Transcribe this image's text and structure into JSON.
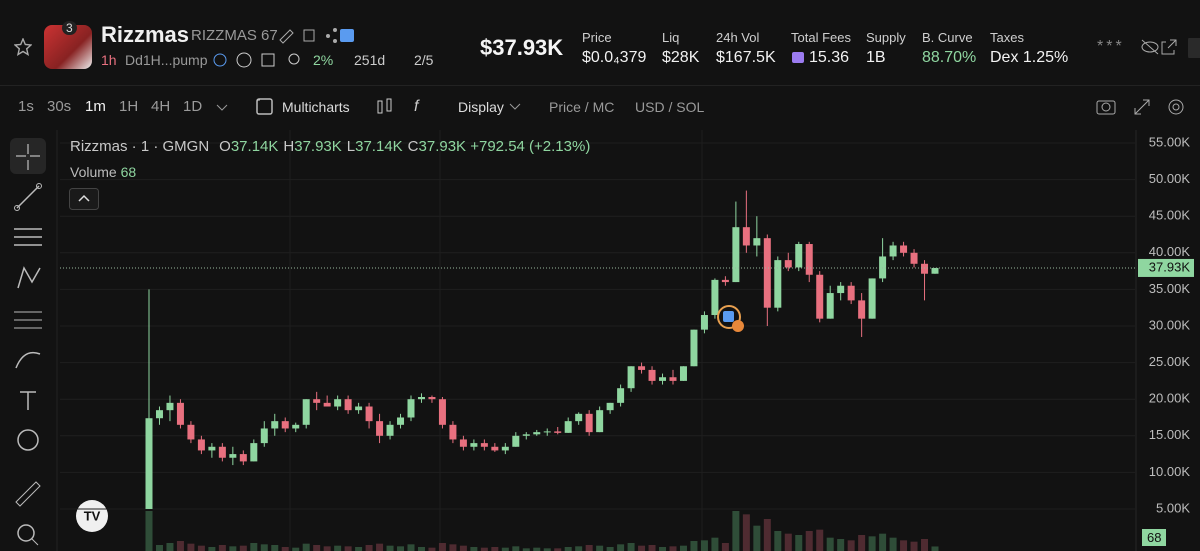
{
  "header": {
    "badge": "3",
    "name": "Rizzmas",
    "ticker": "RIZZMAS 67",
    "age": "1h",
    "address": "Dd1H...pump",
    "holders_pct": "2%",
    "days": "251d",
    "ratio": "2/5",
    "market_cap": "$37.93K",
    "stats": [
      {
        "label": "Price",
        "value": "$0.0₄379"
      },
      {
        "label": "Liq",
        "value": "$28K"
      },
      {
        "label": "24h Vol",
        "value": "$167.5K"
      },
      {
        "label": "Total Fees",
        "value": "15.36"
      },
      {
        "label": "Supply",
        "value": "1B"
      },
      {
        "label": "B. Curve",
        "value": "88.70%"
      },
      {
        "label": "Taxes",
        "value": "Dex 1.25%"
      }
    ]
  },
  "toolbar": {
    "intervals": [
      "1s",
      "30s",
      "1m",
      "1H",
      "4H",
      "1D"
    ],
    "multicharts": "Multicharts",
    "display": "Display",
    "price_mc": "Price / MC",
    "currency": "USD / SOL"
  },
  "chart_data": {
    "type": "candlestick",
    "title": "Rizzmas · 1 · GMGN",
    "ohlc_legend": [
      {
        "label": "O",
        "value": "37.14K"
      },
      {
        "label": "H",
        "value": "37.93K"
      },
      {
        "label": "L",
        "value": "37.14K"
      },
      {
        "label": "C",
        "value": "37.93K"
      }
    ],
    "change": "+792.54 (+2.13%)",
    "volume_label": "Volume",
    "volume_value": "68",
    "open": [
      5000,
      17400,
      18500,
      19500,
      16500,
      14500,
      13000,
      13500,
      12000,
      12500,
      11500,
      14000,
      16000,
      17000,
      16000,
      16500,
      20000,
      19500,
      19000,
      20000,
      18500,
      19000,
      17000,
      15000,
      16500,
      17500,
      20000,
      20300,
      20000,
      16500,
      14500,
      13500,
      14000,
      13500,
      13000,
      13500,
      15000,
      15200,
      15500,
      15600,
      15400,
      17000,
      18000,
      15500,
      18500,
      19500,
      21500,
      24500,
      24000,
      22500,
      23000,
      22500,
      24500,
      29500,
      31500,
      36300,
      36000,
      43500,
      41000,
      42000,
      32500,
      39000,
      38000,
      41200,
      37000,
      31000,
      34500,
      35500,
      33500,
      31000,
      36500,
      39500,
      41000,
      40000,
      38500,
      37140
    ],
    "high": [
      35000,
      19000,
      20500,
      20000,
      17000,
      15000,
      14000,
      14000,
      13500,
      13000,
      14500,
      17000,
      18000,
      17500,
      16800,
      20000,
      21000,
      20500,
      20500,
      20500,
      19500,
      19500,
      18000,
      17000,
      18000,
      20500,
      20800,
      20500,
      20300,
      17000,
      15000,
      14500,
      14500,
      14000,
      14000,
      15500,
      15500,
      15800,
      16000,
      16200,
      17500,
      18200,
      18500,
      19000,
      19500,
      22000,
      24500,
      25000,
      24500,
      23500,
      24000,
      24500,
      29500,
      32000,
      36500,
      36800,
      47000,
      48500,
      45000,
      42500,
      39500,
      40000,
      41500,
      41500,
      37500,
      35500,
      36000,
      36000,
      34500,
      36500,
      42000,
      41500,
      41500,
      40500,
      39000,
      37930
    ],
    "low": [
      5000,
      16500,
      17000,
      16000,
      14000,
      12500,
      12000,
      11500,
      11000,
      11000,
      11500,
      13500,
      15000,
      15500,
      15500,
      16000,
      18500,
      19000,
      18500,
      18000,
      18000,
      16000,
      14000,
      14500,
      16000,
      17000,
      19500,
      19500,
      16000,
      14000,
      13000,
      13000,
      13000,
      12800,
      12500,
      13500,
      14500,
      15000,
      15000,
      15200,
      15400,
      16500,
      15000,
      15500,
      18000,
      19000,
      21000,
      23500,
      22000,
      22000,
      22000,
      22500,
      24500,
      29000,
      31000,
      35500,
      36000,
      40000,
      39500,
      30000,
      32000,
      37500,
      37500,
      36000,
      30500,
      31000,
      33500,
      33000,
      28500,
      31000,
      36000,
      39000,
      39500,
      38000,
      33500,
      37140
    ],
    "close": [
      17400,
      18500,
      19500,
      16500,
      14500,
      13000,
      13500,
      12000,
      12500,
      11500,
      14000,
      16000,
      17000,
      16000,
      16500,
      20000,
      19500,
      19000,
      20000,
      18500,
      19000,
      17000,
      15000,
      16500,
      17500,
      20000,
      20300,
      20000,
      16500,
      14500,
      13500,
      14000,
      13500,
      13000,
      13500,
      15000,
      15200,
      15500,
      15600,
      15400,
      17000,
      18000,
      15500,
      18500,
      19500,
      21500,
      24500,
      24000,
      22500,
      23000,
      22500,
      24500,
      29500,
      31500,
      36300,
      36000,
      43500,
      41000,
      42000,
      32500,
      39000,
      38000,
      41200,
      37000,
      31000,
      34500,
      35500,
      33500,
      31000,
      36500,
      39500,
      41000,
      40000,
      38500,
      37140,
      37930
    ],
    "volume": [
      600,
      90,
      120,
      150,
      110,
      80,
      60,
      90,
      70,
      80,
      120,
      100,
      90,
      60,
      50,
      110,
      90,
      70,
      80,
      70,
      60,
      90,
      110,
      80,
      70,
      100,
      60,
      50,
      120,
      100,
      80,
      60,
      50,
      60,
      50,
      70,
      40,
      50,
      40,
      40,
      60,
      70,
      90,
      80,
      60,
      100,
      120,
      80,
      90,
      60,
      70,
      80,
      150,
      160,
      200,
      120,
      600,
      550,
      380,
      480,
      300,
      260,
      240,
      300,
      320,
      200,
      180,
      160,
      240,
      220,
      260,
      200,
      160,
      140,
      180,
      68
    ],
    "up_color": "#8fd6a0",
    "down_color": "#e8707f",
    "ylim": [
      -740,
      57050
    ],
    "yticks": [
      {
        "value": 5000,
        "label": "5.00K"
      },
      {
        "value": 10000,
        "label": "10.00K"
      },
      {
        "value": 15000,
        "label": "15.00K"
      },
      {
        "value": 20000,
        "label": "20.00K"
      },
      {
        "value": 25000,
        "label": "25.00K"
      },
      {
        "value": 30000,
        "label": "30.00K"
      },
      {
        "value": 35000,
        "label": "35.00K"
      },
      {
        "value": 40000,
        "label": "40.00K"
      },
      {
        "value": 45000,
        "label": "45.00K"
      },
      {
        "value": 50000,
        "label": "50.00K"
      },
      {
        "value": 55000,
        "label": "55.00K"
      }
    ],
    "last_price": {
      "value": 37930,
      "label": "37.93K"
    },
    "grid": true
  }
}
